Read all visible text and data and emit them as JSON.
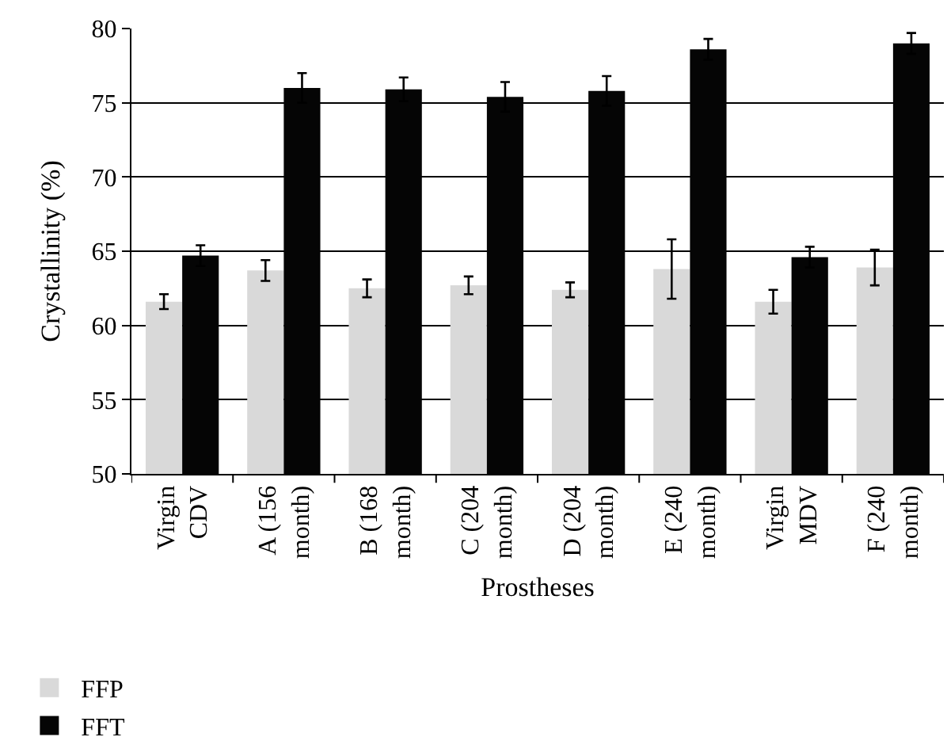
{
  "chart_data": {
    "type": "bar",
    "xlabel": "Prostheses",
    "ylabel": "Crystallinity (%)",
    "categories": [
      "Virgin CDV",
      "A (156 month)",
      "B (168 month)",
      "C (204 month)",
      "D (204 month)",
      "E (240 month)",
      "Virgin MDV",
      "F (240 month)"
    ],
    "series": [
      {
        "name": "FFP",
        "color": "#d9d9d9",
        "values": [
          61.6,
          63.7,
          62.5,
          62.7,
          62.4,
          63.8,
          61.6,
          63.9
        ],
        "errors": [
          0.5,
          0.7,
          0.6,
          0.6,
          0.5,
          2.0,
          0.8,
          1.2
        ]
      },
      {
        "name": "FFT",
        "color": "#050505",
        "values": [
          64.7,
          76.0,
          75.9,
          75.4,
          75.8,
          78.6,
          64.6,
          79.0
        ],
        "errors": [
          0.7,
          1.0,
          0.8,
          1.0,
          1.0,
          0.7,
          0.7,
          0.7
        ]
      }
    ],
    "ylim": [
      50,
      80
    ],
    "yticks": [
      50,
      55,
      60,
      65,
      70,
      75,
      80
    ],
    "grid": "y",
    "legend": "bottom left"
  }
}
